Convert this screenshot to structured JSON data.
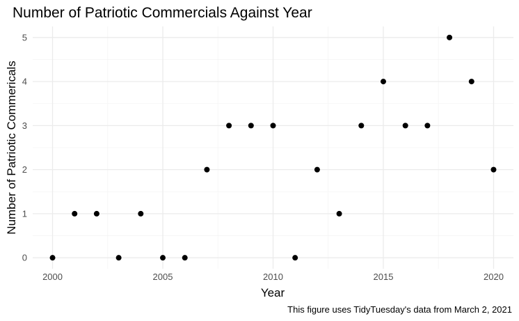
{
  "chart_data": {
    "type": "scatter",
    "title": "Number of Patriotic Commercials Against Year",
    "xlabel": "Year",
    "ylabel": "Number of Patriotic Commericals",
    "caption": "This figure uses TidyTuesday's data from March 2, 2021",
    "xlim": [
      1999.1,
      2020.9
    ],
    "ylim": [
      -0.25,
      5.25
    ],
    "x_ticks": [
      2000,
      2005,
      2010,
      2015,
      2020
    ],
    "y_ticks": [
      0,
      1,
      2,
      3,
      4,
      5
    ],
    "grid": true,
    "point_color": "#000000",
    "points": [
      {
        "x": 2000,
        "y": 0
      },
      {
        "x": 2001,
        "y": 1
      },
      {
        "x": 2002,
        "y": 1
      },
      {
        "x": 2003,
        "y": 0
      },
      {
        "x": 2004,
        "y": 1
      },
      {
        "x": 2005,
        "y": 0
      },
      {
        "x": 2006,
        "y": 0
      },
      {
        "x": 2007,
        "y": 2
      },
      {
        "x": 2008,
        "y": 3
      },
      {
        "x": 2009,
        "y": 3
      },
      {
        "x": 2010,
        "y": 3
      },
      {
        "x": 2011,
        "y": 0
      },
      {
        "x": 2012,
        "y": 2
      },
      {
        "x": 2013,
        "y": 1
      },
      {
        "x": 2014,
        "y": 3
      },
      {
        "x": 2015,
        "y": 4
      },
      {
        "x": 2016,
        "y": 3
      },
      {
        "x": 2017,
        "y": 3
      },
      {
        "x": 2018,
        "y": 5
      },
      {
        "x": 2019,
        "y": 4
      },
      {
        "x": 2020,
        "y": 2
      }
    ]
  }
}
